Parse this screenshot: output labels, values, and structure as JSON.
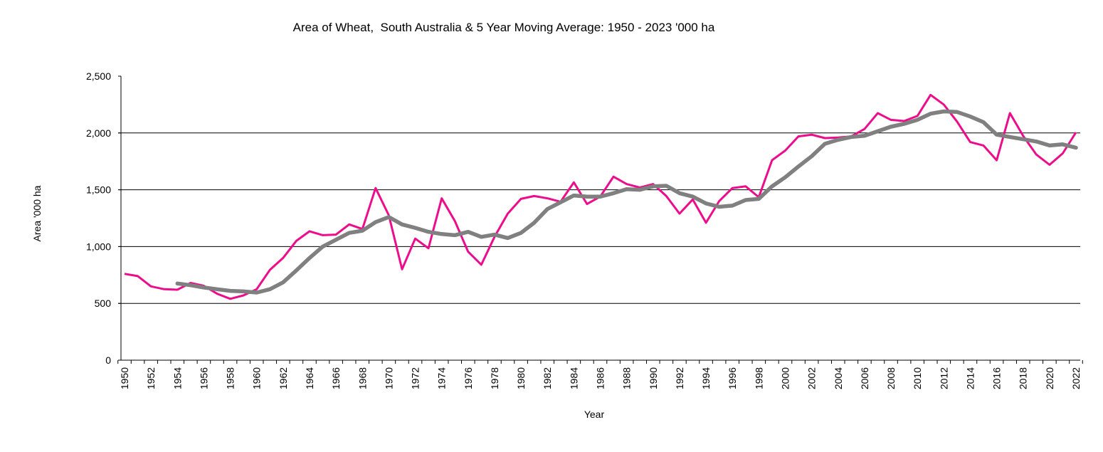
{
  "chart_data": {
    "type": "line",
    "title": "Area of Wheat,  South Australia & 5 Year Moving Average: 1950 - 2023 '000 ha",
    "xlabel": "Year",
    "ylabel": "Area '000 ha",
    "ylim": [
      0,
      2500
    ],
    "xlim": [
      1950,
      2022
    ],
    "grid": true,
    "legend": "none",
    "y_ticks": [
      0,
      500,
      1000,
      1500,
      2000,
      2500
    ],
    "y_tick_labels": [
      "0",
      "500",
      "1,000",
      "1,500",
      "2,000",
      "2,500"
    ],
    "x_tick_labels": [
      "1950",
      "1952",
      "1954",
      "1956",
      "1958",
      "1960",
      "1962",
      "1964",
      "1966",
      "1968",
      "1970",
      "1972",
      "1974",
      "1976",
      "1978",
      "1980",
      "1982",
      "1984",
      "1986",
      "1988",
      "1990",
      "1992",
      "1994",
      "1996",
      "1998",
      "2000",
      "2002",
      "2004",
      "2006",
      "2008",
      "2010",
      "2012",
      "2014",
      "2016",
      "2018",
      "2020",
      "2022"
    ],
    "series": [
      {
        "name": "Area of Wheat, South Australia",
        "color": "#ec0d8c",
        "x": [
          1950,
          1951,
          1952,
          1953,
          1954,
          1955,
          1956,
          1957,
          1958,
          1959,
          1960,
          1961,
          1962,
          1963,
          1964,
          1965,
          1966,
          1967,
          1968,
          1969,
          1970,
          1971,
          1972,
          1973,
          1974,
          1975,
          1976,
          1977,
          1978,
          1979,
          1980,
          1981,
          1982,
          1983,
          1984,
          1985,
          1986,
          1987,
          1988,
          1989,
          1990,
          1991,
          1992,
          1993,
          1994,
          1995,
          1996,
          1997,
          1998,
          1999,
          2000,
          2001,
          2002,
          2003,
          2004,
          2005,
          2006,
          2007,
          2008,
          2009,
          2010,
          2011,
          2012,
          2013,
          2014,
          2015,
          2016,
          2017,
          2018,
          2019,
          2020,
          2021,
          2022
        ],
        "values": [
          760,
          740,
          650,
          625,
          620,
          680,
          655,
          585,
          540,
          570,
          625,
          795,
          900,
          1050,
          1135,
          1100,
          1105,
          1195,
          1155,
          1515,
          1275,
          800,
          1070,
          985,
          1425,
          1225,
          955,
          840,
          1085,
          1290,
          1420,
          1445,
          1425,
          1395,
          1565,
          1375,
          1440,
          1615,
          1550,
          1520,
          1550,
          1445,
          1290,
          1415,
          1210,
          1400,
          1515,
          1530,
          1435,
          1760,
          1845,
          1970,
          1985,
          1955,
          1960,
          1970,
          2035,
          2175,
          2115,
          2105,
          2150,
          2335,
          2250,
          2100,
          1920,
          1890,
          1760,
          2175,
          1975,
          1810,
          1720,
          1820,
          2005
        ]
      },
      {
        "name": "5 Year Moving Average",
        "color": "#808080",
        "x": [
          1954,
          1955,
          1956,
          1957,
          1958,
          1959,
          1960,
          1961,
          1962,
          1963,
          1964,
          1965,
          1966,
          1967,
          1968,
          1969,
          1970,
          1971,
          1972,
          1973,
          1974,
          1975,
          1976,
          1977,
          1978,
          1979,
          1980,
          1981,
          1982,
          1983,
          1984,
          1985,
          1986,
          1987,
          1988,
          1989,
          1990,
          1991,
          1992,
          1993,
          1994,
          1995,
          1996,
          1997,
          1998,
          1999,
          2000,
          2001,
          2002,
          2003,
          2004,
          2005,
          2006,
          2007,
          2008,
          2009,
          2010,
          2011,
          2012,
          2013,
          2014,
          2015,
          2016,
          2017,
          2018,
          2019,
          2020,
          2021,
          2022
        ],
        "values": [
          675,
          660,
          640,
          625,
          610,
          605,
          595,
          625,
          685,
          790,
          900,
          1000,
          1060,
          1120,
          1140,
          1215,
          1260,
          1195,
          1165,
          1130,
          1110,
          1100,
          1130,
          1085,
          1105,
          1075,
          1120,
          1210,
          1330,
          1390,
          1450,
          1440,
          1440,
          1470,
          1505,
          1500,
          1530,
          1535,
          1470,
          1440,
          1380,
          1350,
          1360,
          1410,
          1420,
          1530,
          1610,
          1705,
          1795,
          1905,
          1940,
          1965,
          1975,
          2015,
          2055,
          2080,
          2115,
          2170,
          2190,
          2185,
          2145,
          2095,
          1985,
          1965,
          1945,
          1925,
          1890,
          1900,
          1870
        ]
      }
    ]
  }
}
